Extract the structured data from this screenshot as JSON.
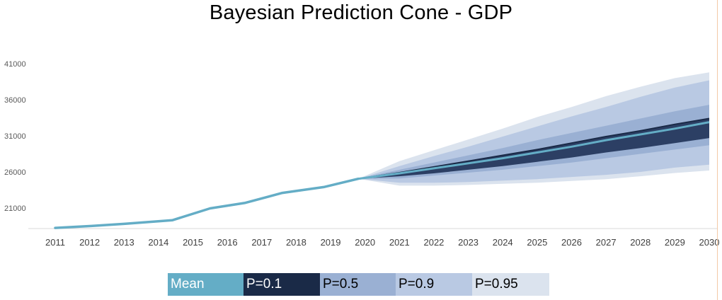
{
  "chart_data": {
    "type": "area",
    "title": "Bayesian Prediction Cone - GDP",
    "xlabel": "",
    "ylabel": "",
    "x_ticks": [
      "2011",
      "2012",
      "2013",
      "2014",
      "2015",
      "2016",
      "2017",
      "2018",
      "2019",
      "2020",
      "2021",
      "2022",
      "2023",
      "2024",
      "2025",
      "2026",
      "2027",
      "2028",
      "2029",
      "2030"
    ],
    "y_ticks": [
      21000,
      26000,
      31000,
      36000,
      41000
    ],
    "history": {
      "name": "GDP",
      "x": [
        2011,
        2012,
        2013,
        2014.4,
        2015.5,
        2016.5,
        2017.6,
        2018.8,
        2019.8
      ],
      "y": [
        18250,
        18500,
        18800,
        19300,
        20950,
        21700,
        23100,
        23900,
        25050
      ]
    },
    "forecast_x": [
      2019.8,
      2021,
      2022,
      2023,
      2024,
      2025,
      2026,
      2027,
      2028,
      2029,
      2030
    ],
    "mean": [
      25050,
      25800,
      26500,
      27200,
      27900,
      28700,
      29500,
      30400,
      31200,
      32000,
      32900
    ],
    "bands": [
      {
        "name": "P=0.95",
        "lower": [
          25050,
          24100,
          24100,
          24200,
          24350,
          24500,
          24750,
          25000,
          25400,
          25850,
          26200
        ],
        "upper": [
          25050,
          27500,
          29000,
          30500,
          32000,
          33600,
          35000,
          36500,
          37800,
          39000,
          39800
        ]
      },
      {
        "name": "P=0.9",
        "lower": [
          25050,
          24500,
          24500,
          24600,
          24800,
          25000,
          25300,
          25600,
          26000,
          26600,
          27000
        ],
        "upper": [
          25050,
          26800,
          28200,
          29500,
          30900,
          32300,
          33700,
          35000,
          36400,
          37700,
          38700
        ]
      },
      {
        "name": "P=0.5",
        "lower": [
          25050,
          25100,
          25500,
          25900,
          26300,
          26800,
          27300,
          27900,
          28500,
          29100,
          29700
        ],
        "upper": [
          25050,
          26300,
          27300,
          28300,
          29300,
          30400,
          31400,
          32400,
          33400,
          34400,
          35300
        ]
      },
      {
        "name": "P=0.1",
        "lower": [
          25050,
          25400,
          25800,
          26300,
          26800,
          27400,
          28000,
          28700,
          29300,
          30000,
          30700
        ],
        "upper": [
          25050,
          25900,
          26700,
          27500,
          28300,
          29100,
          30000,
          30900,
          31700,
          32600,
          33400
        ]
      }
    ],
    "colors": {
      "mean": "#64adc6",
      "P=0.1": "#1a2a47",
      "P=0.1_fill": "#2c3f64",
      "P=0.5": "#9ab0d3",
      "P=0.9": "#b9c9e3",
      "P=0.95": "#dbe3ee"
    },
    "legend": [
      "Mean",
      "P=0.1",
      "P=0.5",
      "P=0.9",
      "P=0.95"
    ]
  }
}
